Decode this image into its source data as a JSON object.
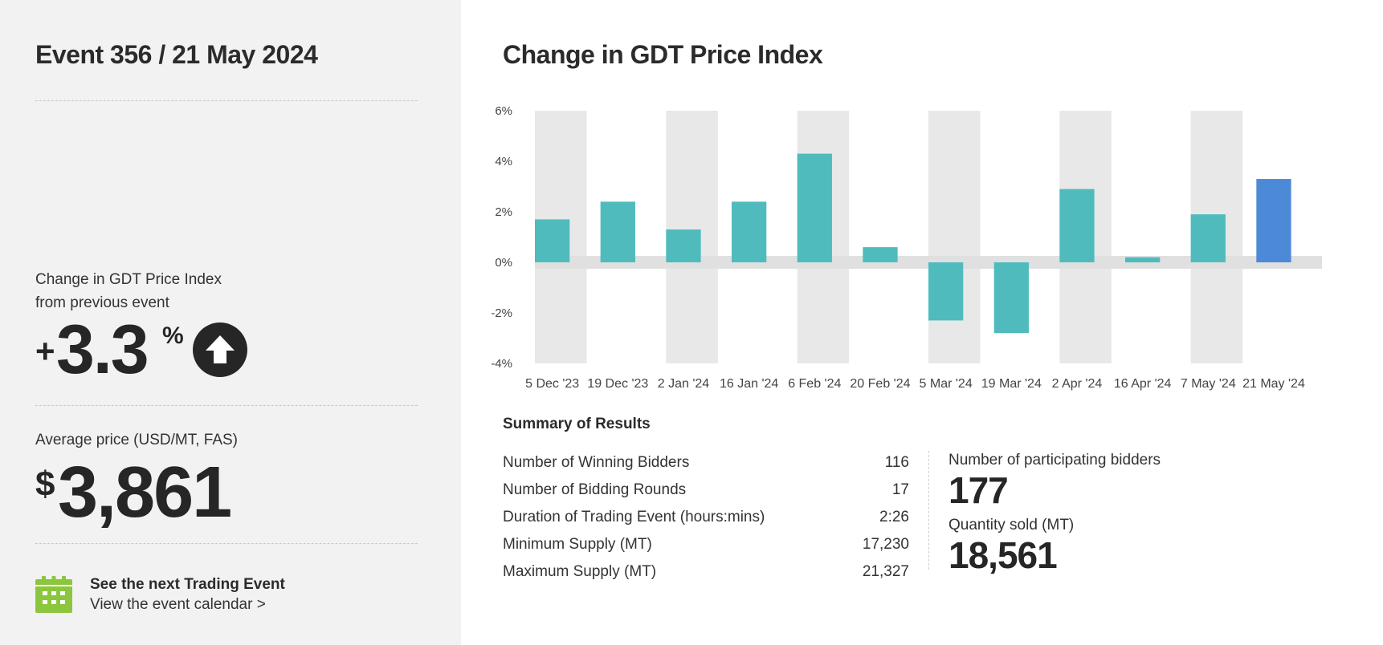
{
  "event": {
    "title": "Event 356 / 21 May 2024"
  },
  "change_index": {
    "label_line1": "Change in GDT Price Index",
    "label_line2": "from previous event",
    "sign": "+",
    "value": "3.3",
    "unit": "%",
    "direction_icon": "arrow-up-circle-icon"
  },
  "average_price": {
    "label": "Average price (USD/MT, FAS)",
    "currency": "$",
    "value": "3,861"
  },
  "next_event": {
    "title": "See the next Trading Event",
    "link": "View the event calendar >",
    "icon": "calendar-icon",
    "icon_color": "#8cc63f"
  },
  "chart_section": {
    "title": "Change in GDT Price Index"
  },
  "chart_data": {
    "type": "bar",
    "title": "Change in GDT Price Index",
    "categories": [
      "5 Dec '23",
      "19 Dec '23",
      "2 Jan '24",
      "16 Jan '24",
      "6 Feb '24",
      "20 Feb '24",
      "5 Mar '24",
      "19 Mar '24",
      "2 Apr '24",
      "16 Apr '24",
      "7 May '24",
      "21 May '24"
    ],
    "values": [
      1.7,
      2.4,
      1.3,
      2.4,
      4.3,
      0.6,
      -2.3,
      -2.8,
      2.9,
      0.2,
      1.9,
      3.3
    ],
    "ylim": [
      -4,
      6
    ],
    "yticks": [
      "-4%",
      "-2%",
      "0%",
      "2%",
      "4%",
      "6%"
    ],
    "ytick_values": [
      -4,
      -2,
      0,
      2,
      4,
      6
    ],
    "bar_color": "#4fbbbd",
    "highlight_color": "#4c8ad8",
    "highlight_index": 11,
    "band_color": "#e8e8e8",
    "zero_band_color": "#e0e0e0"
  },
  "summary": {
    "title": "Summary of Results",
    "rows": [
      {
        "label": "Number of Winning Bidders",
        "value": "116"
      },
      {
        "label": "Number of Bidding Rounds",
        "value": "17"
      },
      {
        "label": "Duration of Trading Event (hours:mins)",
        "value": "2:26"
      },
      {
        "label": "Minimum Supply (MT)",
        "value": "17,230"
      },
      {
        "label": "Maximum Supply (MT)",
        "value": "21,327"
      }
    ],
    "participating_bidders_label": "Number of participating bidders",
    "participating_bidders_value": "177",
    "quantity_sold_label": "Quantity sold (MT)",
    "quantity_sold_value": "18,561"
  }
}
